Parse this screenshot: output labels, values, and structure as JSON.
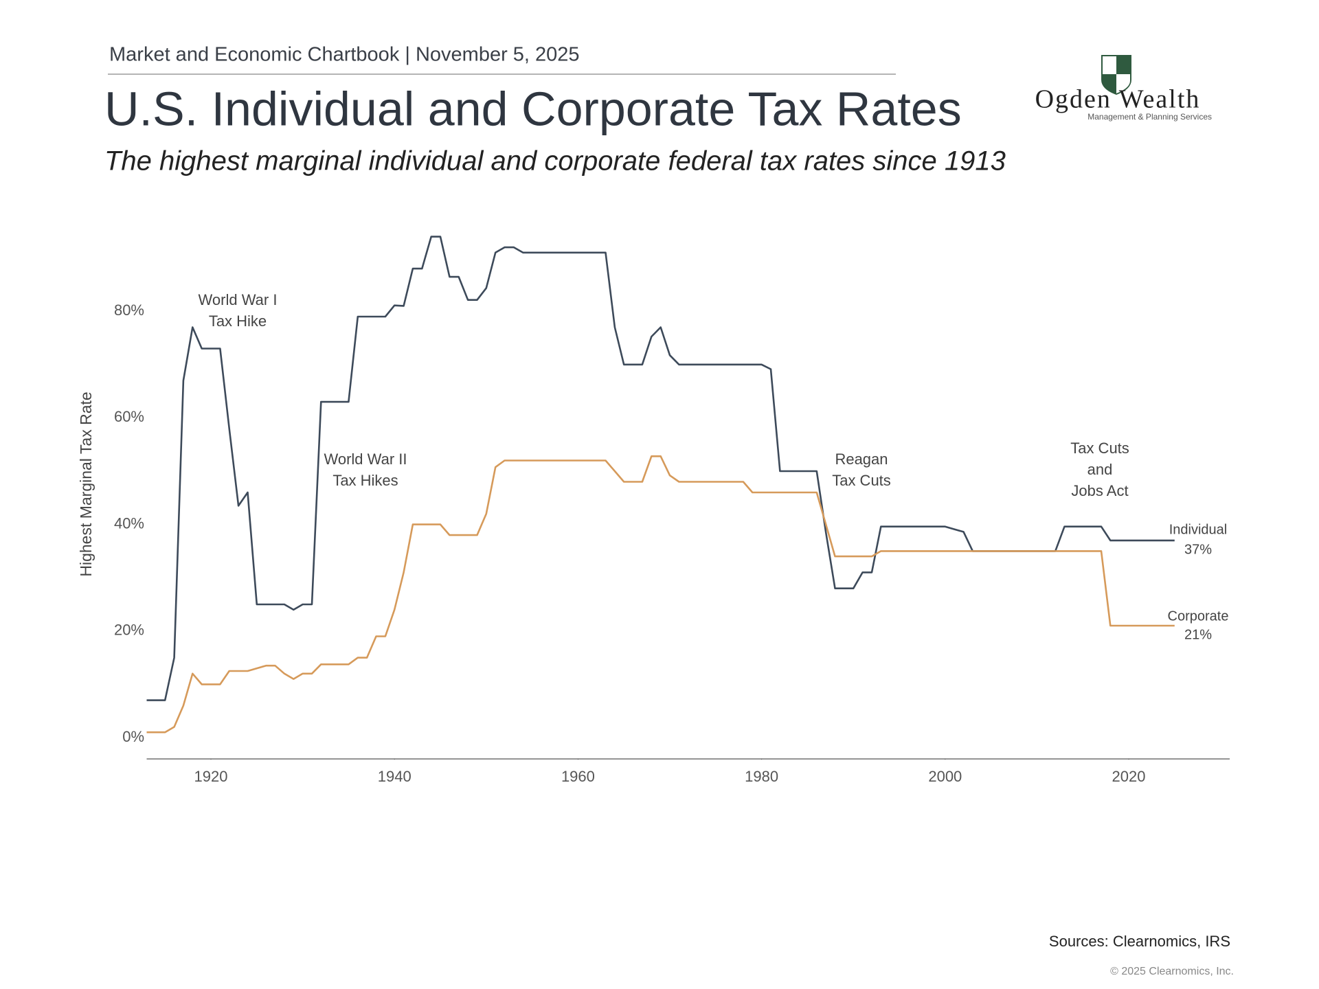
{
  "header": "Market and Economic Chartbook | November 5, 2025",
  "logo": {
    "name": "Ogden Wealth",
    "tagline": "Management & Planning Services"
  },
  "chart_data": {
    "type": "line",
    "title": "U.S. Individual and Corporate Tax Rates",
    "subtitle": "The highest marginal individual and corporate federal tax rates since 1913",
    "y_label": "Highest Marginal Tax Rate",
    "x": [
      1913,
      1914,
      1915,
      1916,
      1917,
      1918,
      1919,
      1920,
      1921,
      1922,
      1923,
      1924,
      1925,
      1926,
      1927,
      1928,
      1929,
      1930,
      1931,
      1932,
      1933,
      1934,
      1935,
      1936,
      1937,
      1938,
      1939,
      1940,
      1941,
      1942,
      1943,
      1944,
      1945,
      1946,
      1947,
      1948,
      1949,
      1950,
      1951,
      1952,
      1953,
      1954,
      1955,
      1956,
      1957,
      1958,
      1959,
      1960,
      1961,
      1962,
      1963,
      1964,
      1965,
      1966,
      1967,
      1968,
      1969,
      1970,
      1971,
      1972,
      1973,
      1974,
      1975,
      1976,
      1977,
      1978,
      1979,
      1980,
      1981,
      1982,
      1983,
      1984,
      1985,
      1986,
      1987,
      1988,
      1989,
      1990,
      1991,
      1992,
      1993,
      1994,
      1995,
      1996,
      1997,
      1998,
      1999,
      2000,
      2001,
      2002,
      2003,
      2004,
      2005,
      2006,
      2007,
      2008,
      2009,
      2010,
      2011,
      2012,
      2013,
      2014,
      2015,
      2016,
      2017,
      2018,
      2019,
      2020,
      2021,
      2022,
      2023,
      2024,
      2025
    ],
    "series": [
      {
        "name": "Individual",
        "color": "#3d4a5a",
        "values": [
          7,
          7,
          7,
          15,
          67,
          77,
          73,
          73,
          73,
          58,
          43.5,
          46,
          25,
          25,
          25,
          25,
          24,
          25,
          25,
          63,
          63,
          63,
          63,
          79,
          79,
          79,
          79,
          81.1,
          81,
          88,
          88,
          94,
          94,
          86.45,
          86.45,
          82.13,
          82.13,
          84.36,
          91,
          92,
          92,
          91,
          91,
          91,
          91,
          91,
          91,
          91,
          91,
          91,
          91,
          77,
          70,
          70,
          70,
          75.25,
          77,
          71.75,
          70,
          70,
          70,
          70,
          70,
          70,
          70,
          70,
          70,
          70,
          69.13,
          50,
          50,
          50,
          50,
          50,
          38.5,
          28,
          28,
          28,
          31,
          31,
          39.6,
          39.6,
          39.6,
          39.6,
          39.6,
          39.6,
          39.6,
          39.6,
          39.1,
          38.6,
          35,
          35,
          35,
          35,
          35,
          35,
          35,
          35,
          35,
          35,
          39.6,
          39.6,
          39.6,
          39.6,
          39.6,
          37,
          37,
          37,
          37,
          37,
          37,
          37,
          37
        ],
        "value_labels": [
          null,
          null,
          null,
          null,
          null,
          null,
          null,
          null,
          null,
          null,
          null,
          null,
          null,
          null,
          null,
          null,
          null,
          null,
          null,
          null,
          null,
          null,
          null,
          null,
          null,
          null,
          null,
          null,
          null,
          null,
          null,
          null,
          null,
          null,
          null,
          null,
          null,
          null,
          null,
          null,
          null,
          null,
          null,
          null,
          null,
          null,
          null,
          null,
          null,
          null,
          null,
          null,
          null,
          null,
          null,
          null,
          null,
          null,
          null,
          null,
          null,
          null,
          null,
          null,
          null,
          null,
          null,
          null,
          null,
          null,
          null,
          null,
          null,
          null,
          null,
          null,
          null,
          null,
          null,
          null,
          null,
          null,
          null,
          null,
          null,
          null,
          null,
          null,
          null,
          null,
          null,
          null,
          null,
          null,
          null,
          null,
          null,
          null,
          null,
          null,
          null,
          null,
          null,
          null,
          null,
          null,
          null,
          null,
          null,
          null,
          null,
          null,
          "37%"
        ]
      },
      {
        "name": "Corporate",
        "color": "#d69a5a",
        "values": [
          1,
          1,
          1,
          2,
          6,
          12,
          10,
          10,
          10,
          12.5,
          12.5,
          12.5,
          13,
          13.5,
          13.5,
          12,
          11,
          12,
          12,
          13.75,
          13.75,
          13.75,
          13.75,
          15,
          15,
          19,
          19,
          24,
          31,
          40,
          40,
          40,
          40,
          38,
          38,
          38,
          38,
          42,
          50.75,
          52,
          52,
          52,
          52,
          52,
          52,
          52,
          52,
          52,
          52,
          52,
          52,
          50,
          48,
          48,
          48,
          52.8,
          52.8,
          49.2,
          48,
          48,
          48,
          48,
          48,
          48,
          48,
          48,
          46,
          46,
          46,
          46,
          46,
          46,
          46,
          46,
          40,
          34,
          34,
          34,
          34,
          34,
          35,
          35,
          35,
          35,
          35,
          35,
          35,
          35,
          35,
          35,
          35,
          35,
          35,
          35,
          35,
          35,
          35,
          35,
          35,
          35,
          35,
          35,
          35,
          35,
          35,
          21,
          21,
          21,
          21,
          21,
          21,
          21,
          21
        ],
        "value_labels": [
          null,
          null,
          null,
          null,
          null,
          null,
          null,
          null,
          null,
          null,
          null,
          null,
          null,
          null,
          null,
          null,
          null,
          null,
          null,
          null,
          null,
          null,
          null,
          null,
          null,
          null,
          null,
          null,
          null,
          null,
          null,
          null,
          null,
          null,
          null,
          null,
          null,
          null,
          null,
          null,
          null,
          null,
          null,
          null,
          null,
          null,
          null,
          null,
          null,
          null,
          null,
          null,
          null,
          null,
          null,
          null,
          null,
          null,
          null,
          null,
          null,
          null,
          null,
          null,
          null,
          null,
          null,
          null,
          null,
          null,
          null,
          null,
          null,
          null,
          null,
          null,
          null,
          null,
          null,
          null,
          null,
          null,
          null,
          null,
          null,
          null,
          null,
          null,
          null,
          null,
          null,
          null,
          null,
          null,
          null,
          null,
          null,
          null,
          null,
          null,
          null,
          null,
          null,
          null,
          null,
          null,
          null,
          null,
          null,
          null,
          null,
          null,
          "21%"
        ]
      }
    ],
    "xlim": [
      1913,
      2031
    ],
    "xticks": [
      1920,
      1940,
      1960,
      1980,
      2000,
      2020
    ],
    "ylim": [
      -4,
      100
    ],
    "yticks": [
      {
        "value": 0,
        "label": "0%"
      },
      {
        "value": 20,
        "label": "20%"
      },
      {
        "value": 40,
        "label": "40%"
      },
      {
        "value": 60,
        "label": "60%"
      },
      {
        "value": 80,
        "label": "80%"
      }
    ],
    "grid": false,
    "annotations": [
      {
        "lines": [
          "World War I",
          "Tax Hike"
        ]
      },
      {
        "lines": [
          "World War II",
          "Tax Hikes"
        ]
      },
      {
        "lines": [
          "Reagan",
          "Tax Cuts"
        ]
      },
      {
        "lines": [
          "Tax Cuts",
          "and",
          "Jobs Act"
        ]
      }
    ]
  },
  "footer": {
    "sources": "Sources: Clearnomics, IRS",
    "copyright": "© 2025 Clearnomics, Inc."
  }
}
